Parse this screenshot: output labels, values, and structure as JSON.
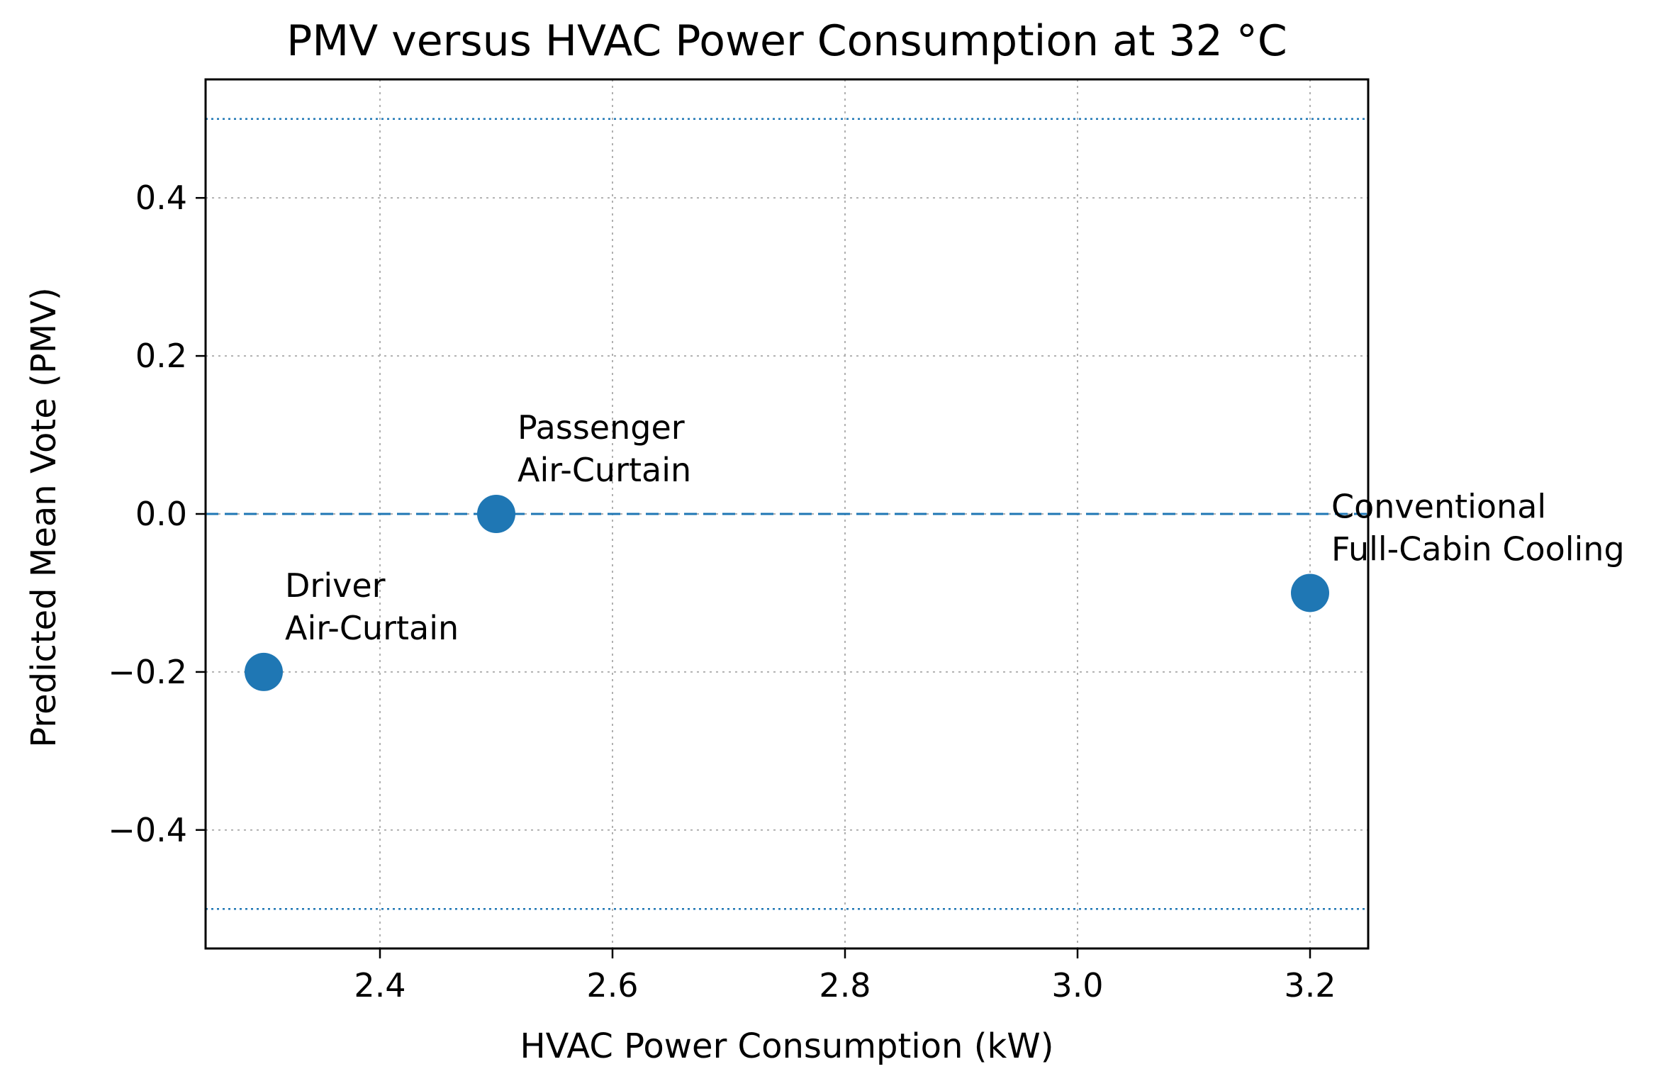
{
  "chart_data": {
    "type": "scatter",
    "title": "PMV versus HVAC Power Consumption at 32 °C",
    "xlabel": "HVAC Power Consumption (kW)",
    "ylabel": "Predicted Mean Vote (PMV)",
    "xlim": [
      2.25,
      3.25
    ],
    "ylim": [
      -0.55,
      0.55
    ],
    "x_ticks": [
      2.4,
      2.6,
      2.8,
      3.0,
      3.2
    ],
    "x_tick_labels": [
      "2.4",
      "2.6",
      "2.8",
      "3.0",
      "3.2"
    ],
    "y_ticks": [
      0.4,
      0.2,
      0.0,
      -0.2,
      -0.4
    ],
    "y_tick_labels": [
      "0.4",
      "0.2",
      "0.0",
      "−0.2",
      "−0.4"
    ],
    "grid": true,
    "color": "#1f77b4",
    "reference_lines": [
      {
        "y": 0.0,
        "style": "dashed"
      },
      {
        "y": 0.5,
        "style": "dotted"
      },
      {
        "y": -0.5,
        "style": "dotted"
      }
    ],
    "points": [
      {
        "x": 2.3,
        "y": -0.2,
        "label": [
          "Driver",
          "Air-Curtain"
        ]
      },
      {
        "x": 2.5,
        "y": 0.0,
        "label": [
          "Passenger",
          "Air-Curtain"
        ]
      },
      {
        "x": 3.2,
        "y": -0.1,
        "label": [
          "Conventional",
          "Full-Cabin Cooling"
        ]
      }
    ]
  }
}
